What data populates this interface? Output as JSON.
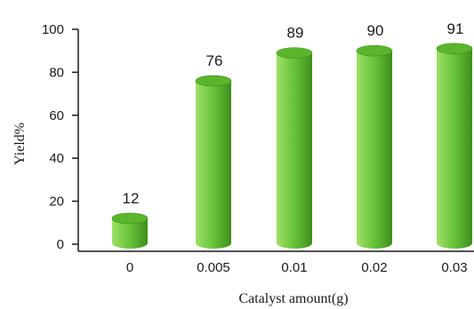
{
  "chart_data": {
    "type": "bar",
    "bar_style": "3d-cylinder",
    "categories": [
      "0",
      "0.005",
      "0.01",
      "0.02",
      "0.03"
    ],
    "values": [
      12,
      76,
      89,
      90,
      91
    ],
    "data_labels": [
      "12",
      "76",
      "89",
      "90",
      "91"
    ],
    "title": "",
    "xlabel": "Catalyst amount(g)",
    "ylabel": "Yield%",
    "ylim": [
      0,
      100
    ],
    "yticks": [
      0,
      20,
      40,
      60,
      80,
      100
    ],
    "ytick_labels": [
      "0",
      "20",
      "40",
      "60",
      "80",
      "100"
    ],
    "grid": false,
    "legend": "none",
    "colors": {
      "bar_body": "#6cc63c",
      "bar_highlight": "#9ee06a",
      "bar_shadow": "#3f8f1c",
      "bar_top": "#5ab52c",
      "axis": "#1a1a1a"
    }
  }
}
